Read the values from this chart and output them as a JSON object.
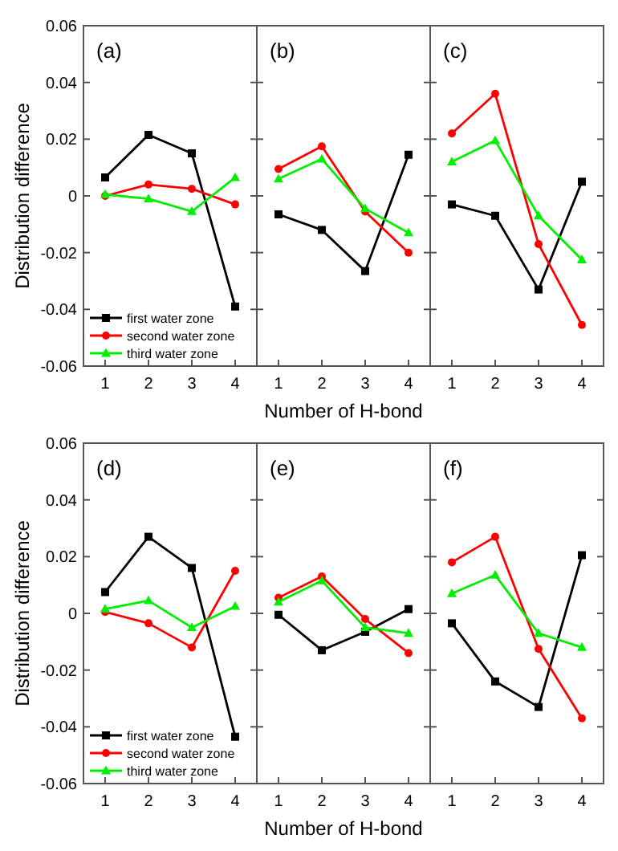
{
  "chart_data": [
    {
      "type": "line",
      "annotations": [
        "(a)"
      ],
      "ylabel": "Distribution difference",
      "categories": [
        "1",
        "2",
        "3",
        "4"
      ],
      "ylim": [
        -0.06,
        0.06
      ],
      "yticks": [
        -0.06,
        -0.04,
        -0.02,
        0,
        0.02,
        0.04,
        0.06
      ],
      "legend": "bottom left",
      "series": [
        {
          "name": "first water zone",
          "color": "#000000",
          "marker": "square",
          "values": [
            0.0065,
            0.0215,
            0.015,
            -0.039
          ]
        },
        {
          "name": "second water zone",
          "color": "#ff0000",
          "marker": "circle",
          "values": [
            0,
            0.004,
            0.0025,
            -0.003
          ]
        },
        {
          "name": "third water zone",
          "color": "#00ee00",
          "marker": "triangle",
          "values": [
            0.0005,
            -0.001,
            -0.0055,
            0.0065
          ]
        }
      ]
    },
    {
      "type": "line",
      "annotations": [
        "(b)"
      ],
      "xlabel": "Number of H-bond",
      "categories": [
        "1",
        "2",
        "3",
        "4"
      ],
      "ylim": [
        -0.06,
        0.06
      ],
      "yticks": [
        -0.06,
        -0.04,
        -0.02,
        0,
        0.02,
        0.04,
        0.06
      ],
      "tick_labels": "x",
      "series": [
        {
          "color": "#000000",
          "marker": "square",
          "values": [
            -0.0065,
            -0.012,
            -0.0265,
            0.0145
          ]
        },
        {
          "color": "#ff0000",
          "marker": "circle",
          "values": [
            0.0095,
            0.0175,
            -0.0055,
            -0.02
          ]
        },
        {
          "color": "#00ee00",
          "marker": "triangle",
          "values": [
            0.006,
            0.013,
            -0.0045,
            -0.013
          ]
        }
      ]
    },
    {
      "type": "line",
      "annotations": [
        "(c)"
      ],
      "categories": [
        "1",
        "2",
        "3",
        "4"
      ],
      "ylim": [
        -0.06,
        0.06
      ],
      "yticks": [
        -0.06,
        -0.04,
        -0.02,
        0,
        0.02,
        0.04,
        0.06
      ],
      "tick_labels": "x",
      "series": [
        {
          "color": "#000000",
          "marker": "square",
          "values": [
            -0.003,
            -0.007,
            -0.033,
            0.005
          ]
        },
        {
          "color": "#ff0000",
          "marker": "circle",
          "values": [
            0.022,
            0.036,
            -0.017,
            -0.0455
          ]
        },
        {
          "color": "#00ee00",
          "marker": "triangle",
          "values": [
            0.012,
            0.0195,
            -0.007,
            -0.0225
          ]
        }
      ]
    },
    {
      "type": "line",
      "annotations": [
        "(d)"
      ],
      "ylabel": "Distribution difference",
      "categories": [
        "1",
        "2",
        "3",
        "4"
      ],
      "ylim": [
        -0.06,
        0.06
      ],
      "yticks": [
        -0.06,
        -0.04,
        -0.02,
        0,
        0.02,
        0.04,
        0.06
      ],
      "legend": "bottom left",
      "series": [
        {
          "name": "first water zone",
          "color": "#000000",
          "marker": "square",
          "values": [
            0.0075,
            0.027,
            0.016,
            -0.0435
          ]
        },
        {
          "name": "second water zone",
          "color": "#ff0000",
          "marker": "circle",
          "values": [
            0.0005,
            -0.0035,
            -0.012,
            0.015
          ]
        },
        {
          "name": "third water zone",
          "color": "#00ee00",
          "marker": "triangle",
          "values": [
            0.0015,
            0.0045,
            -0.005,
            0.0025
          ]
        }
      ]
    },
    {
      "type": "line",
      "annotations": [
        "(e)"
      ],
      "xlabel": "Number of H-bond",
      "categories": [
        "1",
        "2",
        "3",
        "4"
      ],
      "ylim": [
        -0.06,
        0.06
      ],
      "yticks": [
        -0.06,
        -0.04,
        -0.02,
        0,
        0.02,
        0.04,
        0.06
      ],
      "tick_labels": "x",
      "series": [
        {
          "color": "#000000",
          "marker": "square",
          "values": [
            -0.0005,
            -0.013,
            -0.0065,
            0.0015
          ]
        },
        {
          "color": "#ff0000",
          "marker": "circle",
          "values": [
            0.0055,
            0.013,
            -0.002,
            -0.014
          ]
        },
        {
          "color": "#00ee00",
          "marker": "triangle",
          "values": [
            0.004,
            0.0115,
            -0.005,
            -0.007
          ]
        }
      ]
    },
    {
      "type": "line",
      "annotations": [
        "(f)"
      ],
      "categories": [
        "1",
        "2",
        "3",
        "4"
      ],
      "ylim": [
        -0.06,
        0.06
      ],
      "yticks": [
        -0.06,
        -0.04,
        -0.02,
        0,
        0.02,
        0.04,
        0.06
      ],
      "tick_labels": "x",
      "series": [
        {
          "color": "#000000",
          "marker": "square",
          "values": [
            -0.0035,
            -0.024,
            -0.033,
            0.0205
          ]
        },
        {
          "color": "#ff0000",
          "marker": "circle",
          "values": [
            0.018,
            0.027,
            -0.0125,
            -0.037
          ]
        },
        {
          "color": "#00ee00",
          "marker": "triangle",
          "values": [
            0.007,
            0.0135,
            -0.007,
            -0.012
          ]
        }
      ]
    }
  ]
}
